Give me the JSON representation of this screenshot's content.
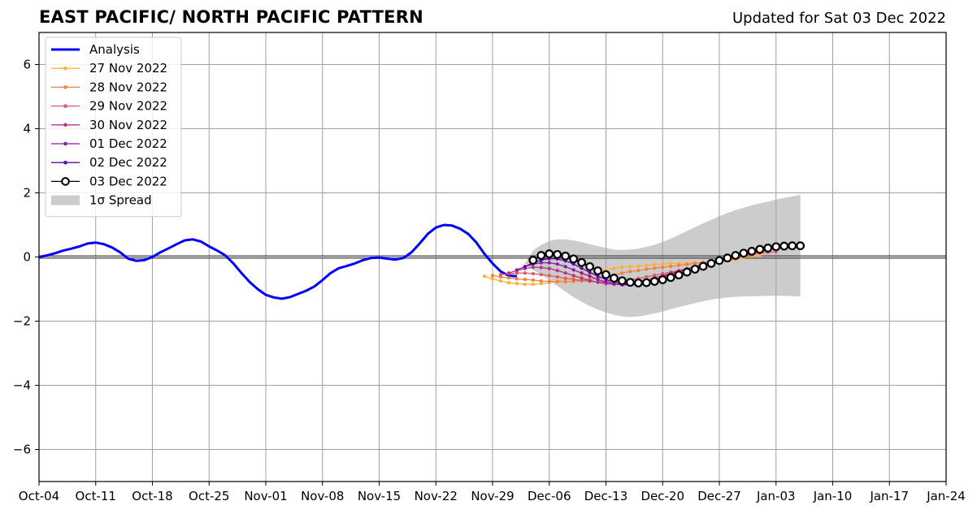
{
  "title": "EAST PACIFIC/ NORTH PACIFIC PATTERN",
  "updated": "Updated for Sat 03 Dec 2022",
  "chart_data": {
    "type": "line",
    "title": "EAST PACIFIC/ NORTH PACIFIC PATTERN",
    "subtitle": "Updated for Sat 03 Dec 2022",
    "xlim": [
      "2022-10-04",
      "2023-01-24"
    ],
    "ylim": [
      -7,
      7
    ],
    "x_ticks": [
      "2022-10-04",
      "2022-10-11",
      "2022-10-18",
      "2022-10-25",
      "2022-11-01",
      "2022-11-08",
      "2022-11-15",
      "2022-11-22",
      "2022-11-29",
      "2022-12-06",
      "2022-12-13",
      "2022-12-20",
      "2022-12-27",
      "2023-01-03",
      "2023-01-10",
      "2023-01-17",
      "2023-01-24"
    ],
    "x_tick_labels": [
      "Oct-04",
      "Oct-11",
      "Oct-18",
      "Oct-25",
      "Nov-01",
      "Nov-08",
      "Nov-15",
      "Nov-22",
      "Nov-29",
      "Dec-06",
      "Dec-13",
      "Dec-20",
      "Dec-27",
      "Jan-03",
      "Jan-10",
      "Jan-17",
      "Jan-24"
    ],
    "y_ticks": [
      -6,
      -4,
      -2,
      0,
      2,
      4,
      6
    ],
    "y_tick_labels": [
      "−6",
      "−4",
      "−2",
      "0",
      "2",
      "4",
      "6"
    ],
    "grid": true,
    "zero_line": true,
    "legend_position": "top-left",
    "series": [
      {
        "name": "Analysis",
        "color": "#0000ff",
        "style": "line",
        "start": "2022-10-04",
        "values": [
          0.0,
          0.05,
          0.12,
          0.2,
          0.26,
          0.33,
          0.42,
          0.45,
          0.4,
          0.3,
          0.15,
          -0.05,
          -0.12,
          -0.1,
          0.0,
          0.15,
          0.27,
          0.4,
          0.52,
          0.55,
          0.48,
          0.33,
          0.2,
          0.05,
          -0.2,
          -0.5,
          -0.78,
          -1.0,
          -1.18,
          -1.26,
          -1.3,
          -1.25,
          -1.15,
          -1.05,
          -0.92,
          -0.72,
          -0.5,
          -0.35,
          -0.28,
          -0.2,
          -0.1,
          -0.03,
          -0.02,
          -0.05,
          -0.08,
          -0.03,
          0.15,
          0.42,
          0.72,
          0.92,
          1.0,
          0.98,
          0.88,
          0.72,
          0.45,
          0.1,
          -0.2,
          -0.45,
          -0.58,
          -0.6
        ]
      },
      {
        "name": "27 Nov 2022",
        "color": "#fcb13a",
        "style": "small-dots",
        "start": "2022-11-28",
        "values": [
          -0.6,
          -0.68,
          -0.75,
          -0.8,
          -0.83,
          -0.85,
          -0.85,
          -0.83,
          -0.8,
          -0.75,
          -0.7,
          -0.65,
          -0.58,
          -0.52,
          -0.46,
          -0.4,
          -0.36,
          -0.32,
          -0.3,
          -0.28,
          -0.26,
          -0.24,
          -0.22,
          -0.2,
          -0.2,
          -0.19,
          -0.18,
          -0.17,
          -0.16,
          -0.15,
          -0.12,
          -0.08,
          -0.02,
          0.02,
          0.05
        ]
      },
      {
        "name": "28 Nov 2022",
        "color": "#f4813b",
        "style": "small-dots",
        "start": "2022-11-29",
        "values": [
          -0.58,
          -0.62,
          -0.65,
          -0.68,
          -0.7,
          -0.72,
          -0.75,
          -0.76,
          -0.77,
          -0.77,
          -0.76,
          -0.74,
          -0.7,
          -0.65,
          -0.6,
          -0.55,
          -0.5,
          -0.45,
          -0.42,
          -0.38,
          -0.35,
          -0.32,
          -0.29,
          -0.26,
          -0.23,
          -0.2,
          -0.17,
          -0.14,
          -0.1,
          -0.05,
          0.0,
          0.05,
          0.1,
          0.13,
          0.14
        ]
      },
      {
        "name": "29 Nov 2022",
        "color": "#dc5a6a",
        "style": "small-dots",
        "start": "2022-11-30",
        "values": [
          -0.55,
          -0.52,
          -0.5,
          -0.5,
          -0.52,
          -0.55,
          -0.58,
          -0.62,
          -0.66,
          -0.7,
          -0.73,
          -0.76,
          -0.78,
          -0.78,
          -0.77,
          -0.75,
          -0.71,
          -0.67,
          -0.62,
          -0.57,
          -0.52,
          -0.47,
          -0.42,
          -0.37,
          -0.32,
          -0.27,
          -0.22,
          -0.16,
          -0.1,
          -0.04,
          0.02,
          0.07,
          0.12,
          0.15,
          0.16
        ]
      },
      {
        "name": "30 Nov 2022",
        "color": "#b83289",
        "style": "small-dots",
        "start": "2022-12-01",
        "values": [
          -0.5,
          -0.42,
          -0.36,
          -0.32,
          -0.33,
          -0.36,
          -0.42,
          -0.5,
          -0.58,
          -0.66,
          -0.73,
          -0.79,
          -0.83,
          -0.85,
          -0.85,
          -0.82,
          -0.78,
          -0.72,
          -0.65,
          -0.58,
          -0.51,
          -0.44,
          -0.37,
          -0.3,
          -0.24,
          -0.18,
          -0.12,
          -0.06,
          0.0,
          0.06,
          0.12,
          0.17,
          0.2
        ]
      },
      {
        "name": "01 Dec 2022",
        "color": "#8c1ba5",
        "style": "small-dots",
        "start": "2022-12-02",
        "values": [
          -0.4,
          -0.3,
          -0.22,
          -0.18,
          -0.18,
          -0.22,
          -0.3,
          -0.4,
          -0.5,
          -0.6,
          -0.7,
          -0.78,
          -0.84,
          -0.87,
          -0.87,
          -0.84,
          -0.78,
          -0.7,
          -0.62,
          -0.54,
          -0.46,
          -0.38,
          -0.3,
          -0.22,
          -0.15,
          -0.08,
          -0.02,
          0.05,
          0.11,
          0.17,
          0.22,
          0.25
        ]
      },
      {
        "name": "02 Dec 2022",
        "color": "#5c0aa8",
        "style": "small-dots",
        "start": "2022-12-03",
        "values": [
          -0.3,
          -0.18,
          -0.1,
          -0.05,
          -0.06,
          -0.12,
          -0.22,
          -0.35,
          -0.48,
          -0.6,
          -0.7,
          -0.78,
          -0.84,
          -0.86,
          -0.85,
          -0.82,
          -0.76,
          -0.68,
          -0.6,
          -0.52,
          -0.44,
          -0.36,
          -0.28,
          -0.2,
          -0.12,
          -0.05,
          0.02,
          0.09,
          0.15,
          0.21,
          0.26,
          0.28
        ]
      },
      {
        "name": "03 Dec 2022",
        "color": "#000000",
        "style": "open-circles",
        "start": "2022-12-04",
        "values": [
          -0.1,
          0.05,
          0.1,
          0.08,
          0.03,
          -0.06,
          -0.17,
          -0.3,
          -0.43,
          -0.55,
          -0.66,
          -0.74,
          -0.79,
          -0.81,
          -0.8,
          -0.76,
          -0.71,
          -0.64,
          -0.56,
          -0.47,
          -0.38,
          -0.29,
          -0.2,
          -0.11,
          -0.03,
          0.05,
          0.12,
          0.18,
          0.24,
          0.28,
          0.32,
          0.34,
          0.35,
          0.35
        ]
      }
    ],
    "spread": {
      "name": "1σ Spread",
      "color": "#cccccc",
      "start": "2022-12-03",
      "upper": [
        -0.2,
        0.2,
        0.38,
        0.5,
        0.55,
        0.55,
        0.52,
        0.46,
        0.4,
        0.34,
        0.28,
        0.23,
        0.22,
        0.23,
        0.26,
        0.32,
        0.38,
        0.47,
        0.57,
        0.69,
        0.81,
        0.93,
        1.05,
        1.16,
        1.27,
        1.37,
        1.46,
        1.54,
        1.61,
        1.67,
        1.73,
        1.79,
        1.84,
        1.89,
        1.94
      ],
      "lower": [
        -0.2,
        -0.4,
        -0.55,
        -0.72,
        -0.9,
        -1.08,
        -1.25,
        -1.4,
        -1.53,
        -1.64,
        -1.73,
        -1.8,
        -1.85,
        -1.87,
        -1.85,
        -1.81,
        -1.76,
        -1.7,
        -1.63,
        -1.56,
        -1.5,
        -1.44,
        -1.38,
        -1.33,
        -1.29,
        -1.26,
        -1.24,
        -1.23,
        -1.22,
        -1.22,
        -1.21,
        -1.21,
        -1.21,
        -1.22,
        -1.23
      ]
    }
  }
}
